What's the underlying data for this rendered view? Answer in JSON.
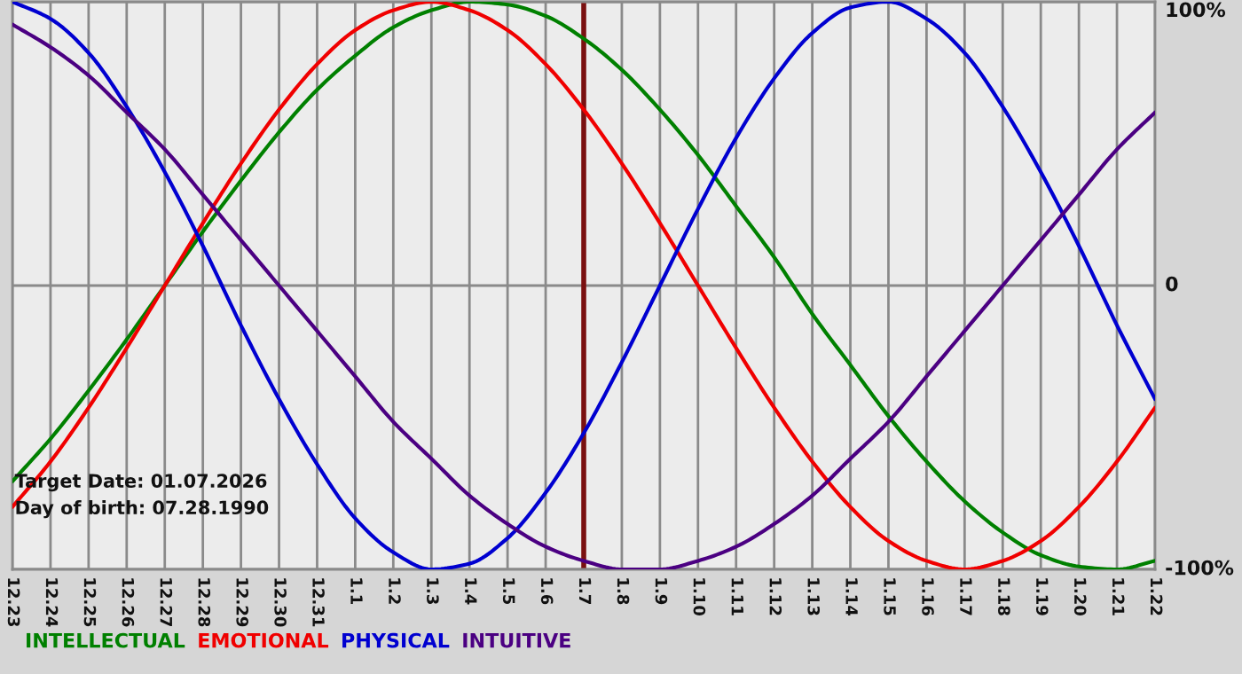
{
  "chart_data": {
    "type": "line",
    "categories": [
      "12.23",
      "12.24",
      "12.25",
      "12.26",
      "12.27",
      "12.28",
      "12.29",
      "12.30",
      "12.31",
      "1.1",
      "1.2",
      "1.3",
      "1.4",
      "1.5",
      "1.6",
      "1.7",
      "1.8",
      "1.9",
      "1.10",
      "1.11",
      "1.12",
      "1.13",
      "1.14",
      "1.15",
      "1.16",
      "1.17",
      "1.18",
      "1.19",
      "1.20",
      "1.21",
      "1.22"
    ],
    "series": [
      {
        "name": "INTELLECTUAL",
        "color": "#008000",
        "values": [
          -69,
          -54,
          -37,
          -19,
          0,
          19,
          37,
          54,
          69,
          81,
          91,
          97,
          100,
          99,
          95,
          87,
          76,
          62,
          46,
          28,
          10,
          -10,
          -28,
          -46,
          -62,
          -76,
          -87,
          -95,
          -99,
          -100,
          -97
        ]
      },
      {
        "name": "EMOTIONAL",
        "color": "#f00000",
        "values": [
          -78,
          -62,
          -43,
          -22,
          0,
          22,
          43,
          62,
          78,
          90,
          97,
          100,
          97,
          90,
          78,
          62,
          43,
          22,
          0,
          -22,
          -43,
          -62,
          -78,
          -90,
          -97,
          -100,
          -97,
          -90,
          -78,
          -62,
          -43
        ]
      },
      {
        "name": "PHYSICAL",
        "color": "#0000d0",
        "values": [
          100,
          94,
          82,
          63,
          40,
          14,
          -14,
          -40,
          -63,
          -82,
          -94,
          -100,
          -98,
          -89,
          -73,
          -52,
          -27,
          0,
          27,
          52,
          73,
          89,
          98,
          100,
          94,
          82,
          63,
          40,
          14,
          -14,
          -40
        ]
      },
      {
        "name": "INTUITIVE",
        "color": "#4b0082",
        "values": [
          92,
          84,
          74,
          61,
          48,
          32,
          16,
          0,
          -16,
          -32,
          -48,
          -61,
          -74,
          -84,
          -92,
          -97,
          -100,
          -100,
          -97,
          -92,
          -84,
          -74,
          -61,
          -48,
          -32,
          -16,
          0,
          16,
          32,
          48,
          61
        ]
      }
    ],
    "ylim": [
      -100,
      100
    ],
    "yticks": [
      {
        "value": 100,
        "label": "100%"
      },
      0,
      {
        "value": -100,
        "label": "-100%"
      }
    ],
    "grid": true,
    "legend": "bottom",
    "ref_lines": [
      {
        "axis": "x",
        "value": "1.7",
        "color": "#7a1010"
      }
    ],
    "annotations": [
      "Target Date: 01.07.2026",
      "Day of birth: 07.28.1990"
    ]
  }
}
